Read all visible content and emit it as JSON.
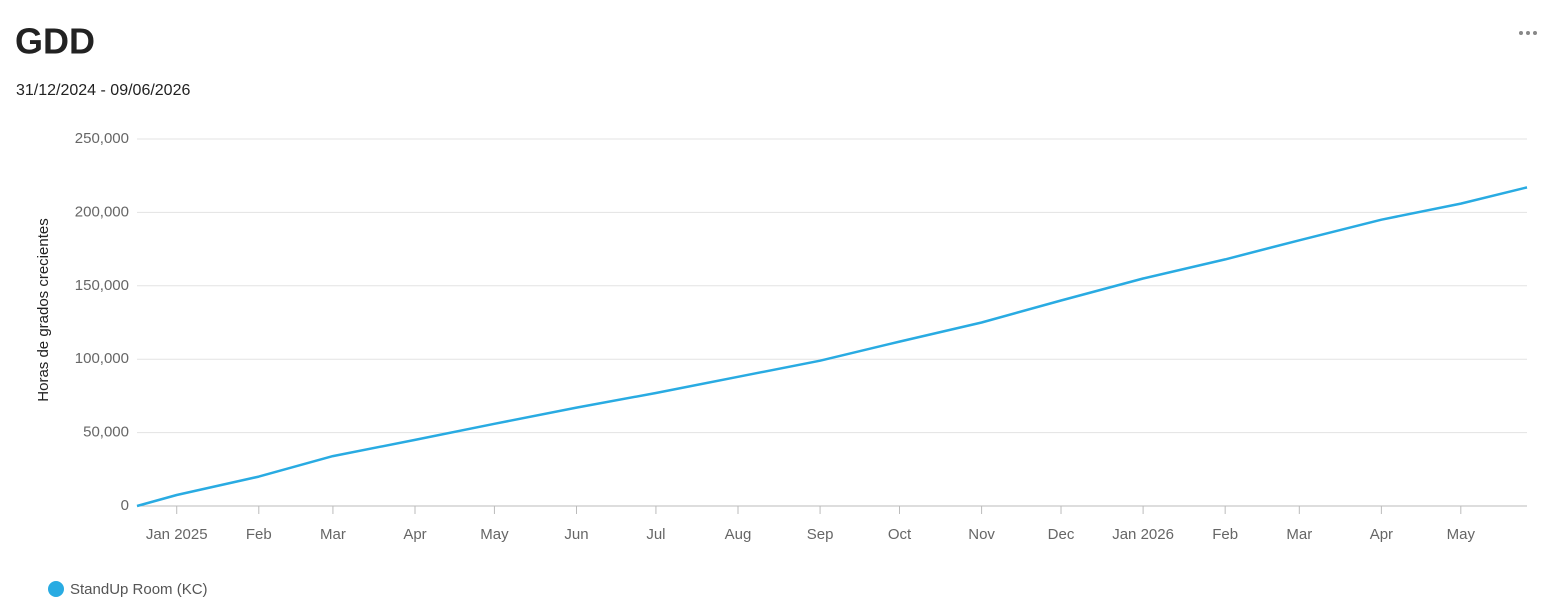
{
  "chart_data": {
    "type": "line",
    "title": "GDD",
    "subtitle": "31/12/2024 - 09/06/2026",
    "y_label": "Horas de grados crecientes",
    "x": [
      "2024-12-31",
      "2025-01",
      "2025-02",
      "2025-03",
      "2025-04",
      "2025-05",
      "2025-06",
      "2025-07",
      "2025-08",
      "2025-09",
      "2025-10",
      "2025-11",
      "2025-12",
      "2026-01",
      "2026-02",
      "2026-03",
      "2026-04",
      "2026-05",
      "2026-06-09"
    ],
    "series": [
      {
        "name": "StandUp Room (KC)",
        "color": "#29abe2",
        "values": [
          0,
          7500,
          20000,
          34000,
          45000,
          56000,
          67000,
          77000,
          88000,
          99000,
          112000,
          125000,
          140000,
          155000,
          168000,
          181000,
          195000,
          206000,
          217000
        ]
      }
    ],
    "xlim": [
      "2024-12-31",
      "2026-06-09"
    ],
    "xticks": [
      {
        "value": "2025-01",
        "label": "Jan 2025"
      },
      {
        "value": "2025-02",
        "label": "Feb"
      },
      {
        "value": "2025-03",
        "label": "Mar"
      },
      {
        "value": "2025-04",
        "label": "Apr"
      },
      {
        "value": "2025-05",
        "label": "May"
      },
      {
        "value": "2025-06",
        "label": "Jun"
      },
      {
        "value": "2025-07",
        "label": "Jul"
      },
      {
        "value": "2025-08",
        "label": "Aug"
      },
      {
        "value": "2025-09",
        "label": "Sep"
      },
      {
        "value": "2025-10",
        "label": "Oct"
      },
      {
        "value": "2025-11",
        "label": "Nov"
      },
      {
        "value": "2025-12",
        "label": "Dec"
      },
      {
        "value": "2026-01",
        "label": "Jan 2026"
      },
      {
        "value": "2026-02",
        "label": "Feb"
      },
      {
        "value": "2026-03",
        "label": "Mar"
      },
      {
        "value": "2026-04",
        "label": "Apr"
      },
      {
        "value": "2026-05",
        "label": "May"
      }
    ],
    "ylim": [
      0,
      250000
    ],
    "yticks": [
      0,
      {
        "value": 50000,
        "label": "50,000"
      },
      {
        "value": 100000,
        "label": "100,000"
      },
      {
        "value": 150000,
        "label": "150,000"
      },
      {
        "value": 200000,
        "label": "200,000"
      },
      {
        "value": 250000,
        "label": "250,000"
      }
    ],
    "grid": true
  }
}
